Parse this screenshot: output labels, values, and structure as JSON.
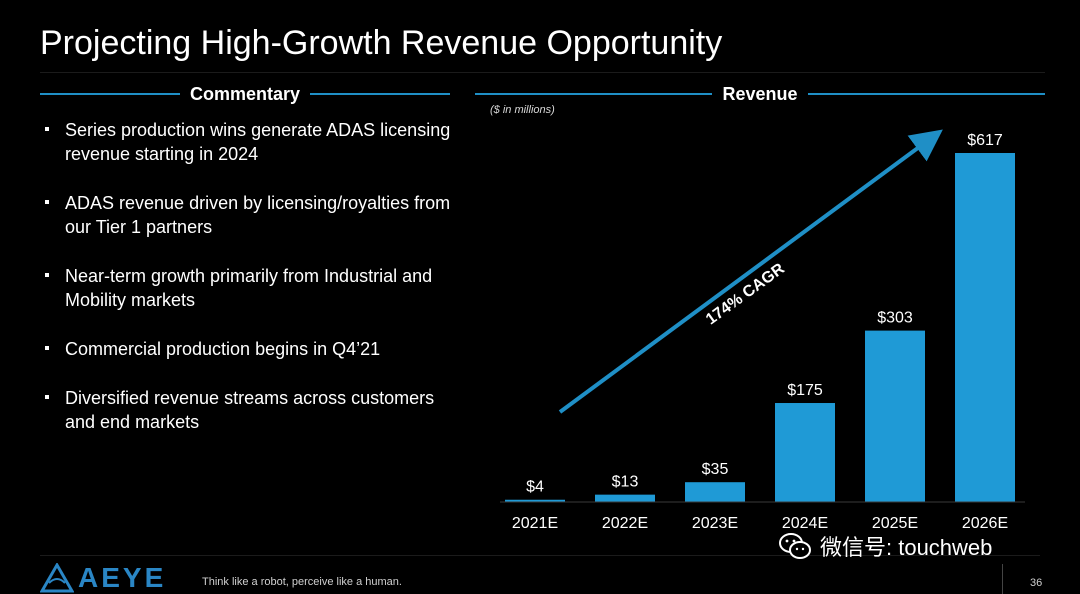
{
  "slide": {
    "title": "Projecting High-Growth Revenue Opportunity",
    "page_number": "36",
    "tagline": "Think like a robot, perceive like a human.",
    "logo_text": "AEYE"
  },
  "commentary": {
    "heading": "Commentary",
    "bullets": [
      "Series production wins generate ADAS licensing revenue starting in 2024",
      "ADAS revenue driven by licensing/royalties from our Tier 1 partners",
      "Near-term growth primarily from Industrial and Mobility markets",
      "Commercial production begins in Q4’21",
      "Diversified revenue streams across customers and end markets"
    ]
  },
  "revenue": {
    "heading": "Revenue",
    "units_note": "($ in millions)"
  },
  "watermark": {
    "text": "微信号: touchweb"
  },
  "colors": {
    "accent": "#1f8fc6",
    "bar": "#1f9ad6",
    "background": "#000000",
    "text": "#ffffff"
  },
  "chart_data": {
    "type": "bar",
    "categories": [
      "2021E",
      "2022E",
      "2023E",
      "2024E",
      "2025E",
      "2026E"
    ],
    "values": [
      4,
      13,
      35,
      175,
      303,
      617
    ],
    "data_labels": [
      "$4",
      "$13",
      "$35",
      "$175",
      "$303",
      "$617"
    ],
    "annotation": "174% CAGR",
    "ylim": [
      0,
      617
    ],
    "grid": false,
    "legend": "none"
  }
}
